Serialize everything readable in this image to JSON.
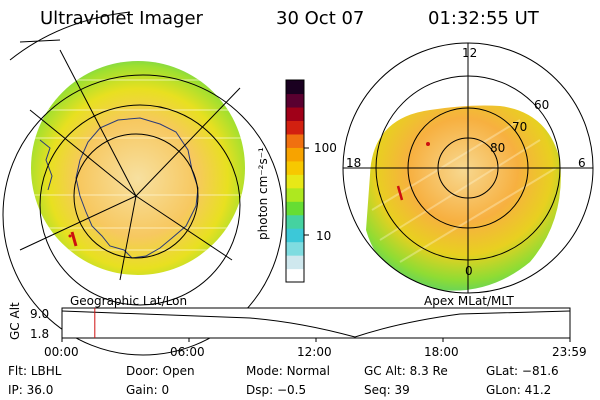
{
  "header": {
    "instrument": "Ultraviolet Imager",
    "date": "30 Oct 07",
    "time": "01:32:55 UT"
  },
  "left_panel": {
    "label": "Geographic Lat/Lon"
  },
  "right_panel": {
    "label": "Apex MLat/MLT",
    "mlt_labels": {
      "top": "12",
      "left": "18",
      "right": "6",
      "bottom": "0"
    },
    "lat_labels": [
      "60",
      "70",
      "80"
    ]
  },
  "colorbar": {
    "unit_label": "photon cm⁻²s⁻¹",
    "ticks": [
      {
        "label": "100",
        "value": 100
      },
      {
        "label": "10",
        "value": 10
      }
    ],
    "colors": [
      "#ffffff",
      "#cfe8ee",
      "#7fdce0",
      "#3cc8d8",
      "#45d2a0",
      "#66dd33",
      "#aee81f",
      "#e8e817",
      "#f7c800",
      "#f7a300",
      "#f07010",
      "#d22010",
      "#a00018",
      "#5a0030",
      "#1a0020"
    ]
  },
  "timeline": {
    "axis_label": "GC Alt",
    "y_ticks": [
      "9.0",
      "1.8"
    ],
    "x_ticks": [
      "00:00",
      "06:00",
      "12:00",
      "18:00",
      "23:59"
    ],
    "marker_time_hours": 1.55
  },
  "info": {
    "row1": [
      {
        "label": "Flt:",
        "value": "LBHL"
      },
      {
        "label": "Door:",
        "value": "Open"
      },
      {
        "label": "Mode:",
        "value": "Normal"
      },
      {
        "label": "GC Alt:",
        "value": "8.3 Re"
      },
      {
        "label": "GLat:",
        "value": "−81.6"
      }
    ],
    "row2": [
      {
        "label": "IP:",
        "value": "36.0"
      },
      {
        "label": "Gain:",
        "value": "0"
      },
      {
        "label": "Dsp:",
        "value": "−0.5"
      },
      {
        "label": "Seq:",
        "value": "39"
      },
      {
        "label": "GLon:",
        "value": "41.2"
      }
    ]
  }
}
